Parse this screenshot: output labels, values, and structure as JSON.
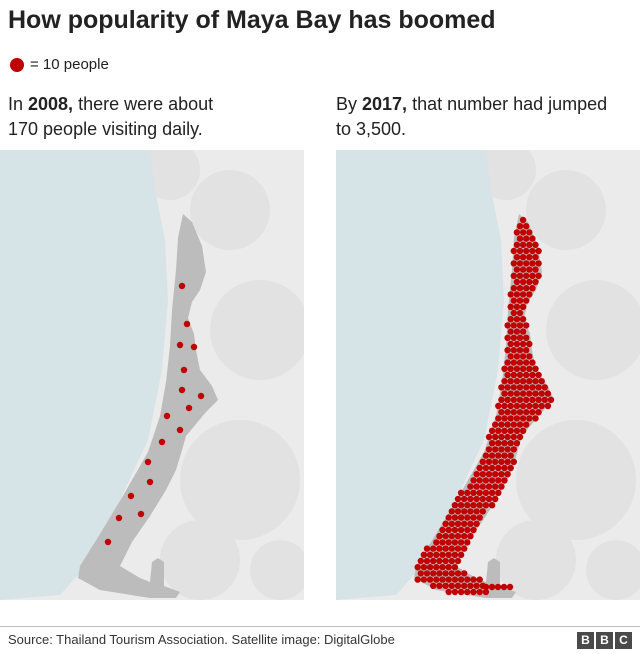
{
  "title": "How popularity of Maya Bay has boomed",
  "legend": {
    "label": "= 10 people",
    "dot_color": "#c00000"
  },
  "panels": [
    {
      "year": "2008,",
      "pre": "In ",
      "post": " there were about",
      "line2": "170 people visiting daily.",
      "dots": 17
    },
    {
      "year": "2017,",
      "pre": "By ",
      "post": " that number had jumped",
      "line2": "to 3,500.",
      "dots": 350
    }
  ],
  "footer": {
    "source": "Source: Thailand Tourism Association. Satellite image: DigitalGlobe",
    "logo": [
      "B",
      "B",
      "C"
    ]
  },
  "colors": {
    "water": "#d6e4e8",
    "land": "#ebebeb",
    "beach": "#bcbcbc",
    "dot": "#c00000"
  }
}
